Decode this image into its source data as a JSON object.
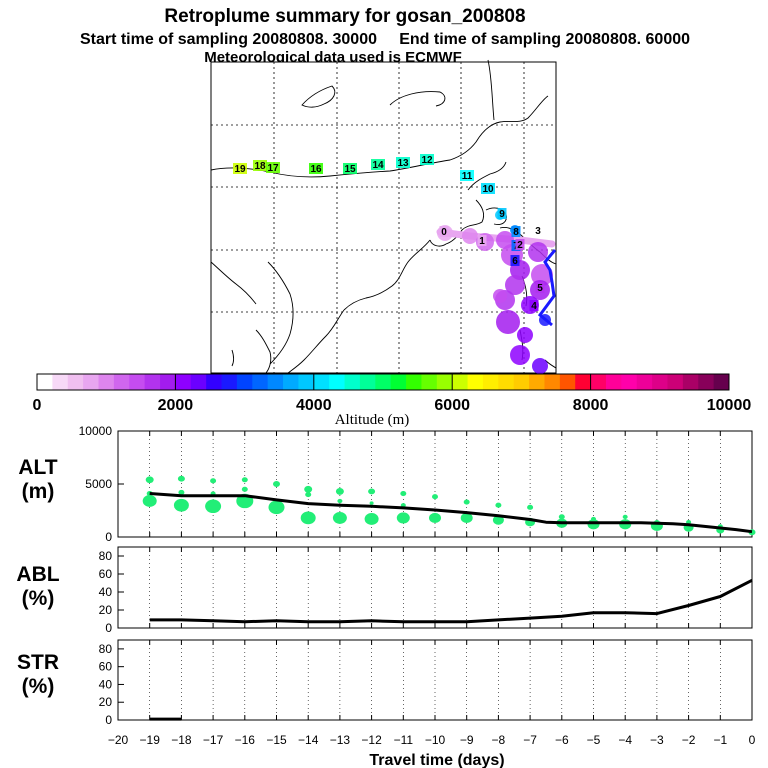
{
  "header": {
    "title": "Retroplume summary for gosan_200808",
    "sampling": "Start time of sampling 20080808. 30000     End time of sampling 20080808. 60000",
    "met": "Meteorological data used is ECMWF"
  },
  "colorbar": {
    "ticks": [
      "0",
      "2000",
      "4000",
      "6000",
      "8000",
      "10000"
    ],
    "label": "Altitude (m)",
    "colors": [
      "#ffffff",
      "#f7d9f7",
      "#f0bff0",
      "#e8a6f0",
      "#de85ee",
      "#d066ee",
      "#c54cf0",
      "#b233ee",
      "#a31cee",
      "#8e00ff",
      "#6b00ff",
      "#3300ff",
      "#1a1aff",
      "#0044ff",
      "#0066ff",
      "#0088ff",
      "#00aaff",
      "#00c8ff",
      "#00e0ff",
      "#00ffff",
      "#00ffcc",
      "#00ff99",
      "#00ff66",
      "#00ff33",
      "#33ff00",
      "#66ff00",
      "#99ff00",
      "#ccff00",
      "#ffff00",
      "#ffee00",
      "#ffdd00",
      "#ffcc00",
      "#ffaa00",
      "#ff8800",
      "#ff5500",
      "#ff0033",
      "#ff0066",
      "#ff0099",
      "#ff00aa",
      "#ee0099",
      "#dd0088",
      "#cc0077",
      "#aa0066",
      "#88005a",
      "#66004d"
    ]
  },
  "map_labels": [
    "19",
    "18",
    "17",
    "16",
    "15",
    "14",
    "13",
    "12",
    "11",
    "10",
    "9",
    "8",
    "7",
    "6",
    "5",
    "4",
    "3",
    "2",
    "1",
    "0"
  ],
  "chart_data": [
    {
      "type": "scatter",
      "panel": "ALT",
      "ylabel_1": "ALT",
      "ylabel_2": "(m)",
      "ylim": [
        0,
        10000
      ],
      "yticks": [
        "0",
        "5000",
        "10000"
      ],
      "median_line": {
        "x": [
          0,
          -0.5,
          -1,
          -1.5,
          -2,
          -2.5,
          -3,
          -3.5,
          -4,
          -5,
          -6,
          -6.5,
          -7,
          -8,
          -9,
          -10,
          -11,
          -12,
          -13,
          -14,
          -15,
          -16,
          -17,
          -18,
          -19
        ],
        "y": [
          500,
          700,
          850,
          1000,
          1150,
          1250,
          1300,
          1350,
          1350,
          1350,
          1350,
          1400,
          1650,
          2000,
          2300,
          2550,
          2750,
          2900,
          3000,
          3150,
          3500,
          3900,
          3900,
          3900,
          4100
        ]
      },
      "main_dots": {
        "x": [
          -19,
          -18,
          -17,
          -16,
          -15,
          -14,
          -13,
          -12,
          -11,
          -10,
          -9,
          -8,
          -7,
          -6,
          -5,
          -4,
          -3,
          -2,
          -1,
          0
        ],
        "y": [
          3400,
          3000,
          2900,
          3400,
          2800,
          1800,
          1800,
          1700,
          1800,
          1800,
          1800,
          1600,
          1400,
          1300,
          1200,
          1200,
          1050,
          900,
          650,
          450
        ],
        "size": [
          7,
          7.5,
          8,
          8.5,
          8,
          7.5,
          7,
          7,
          6.5,
          6,
          6,
          5.5,
          5,
          5.5,
          6,
          6,
          6,
          5,
          4,
          3.5
        ]
      },
      "upper_dots": {
        "x": [
          -19,
          -18,
          -17,
          -16,
          -15,
          -14,
          -13,
          -12,
          -11,
          -10,
          -9,
          -8,
          -7,
          -6,
          -5,
          -4,
          -3,
          -2,
          -1
        ],
        "y": [
          5400,
          5500,
          5300,
          5400,
          5000,
          4500,
          4300,
          4300,
          4100,
          3800,
          3300,
          3000,
          2800,
          1900,
          1700,
          1900,
          1400,
          1400,
          1000
        ],
        "size": [
          4,
          3.5,
          3,
          3,
          3.5,
          4,
          4,
          3.5,
          3,
          3,
          3,
          3,
          3,
          3,
          2.5,
          2.5,
          2.5,
          2.5,
          2.5
        ]
      },
      "mid_dots": {
        "x": [
          -19,
          -18,
          -17,
          -16,
          -15,
          -14,
          -13,
          -12,
          -11
        ],
        "y": [
          4100,
          4200,
          4100,
          4500,
          3400,
          4000,
          3400,
          3200,
          3000
        ],
        "size": [
          3,
          3,
          2.5,
          3,
          2.5,
          3,
          2.5,
          2,
          2.5
        ]
      }
    },
    {
      "type": "line",
      "panel": "ABL",
      "ylabel_1": "ABL",
      "ylabel_2": "(%)",
      "ylim": [
        0,
        90
      ],
      "yticks": [
        "0",
        "20",
        "40",
        "60",
        "80"
      ],
      "x": [
        -19,
        -18,
        -17,
        -16,
        -15,
        -14,
        -13,
        -12,
        -11,
        -10,
        -9,
        -8,
        -7,
        -6,
        -5,
        -4,
        -3,
        -2,
        -1,
        0
      ],
      "y": [
        9,
        9,
        8,
        7,
        8,
        7,
        7,
        8,
        7,
        7,
        7,
        9,
        11,
        13,
        17,
        17,
        16,
        25,
        35,
        53
      ]
    },
    {
      "type": "line",
      "panel": "STR",
      "ylabel_1": "STR",
      "ylabel_2": "(%)",
      "ylim": [
        0,
        90
      ],
      "yticks": [
        "0",
        "20",
        "40",
        "60",
        "80"
      ],
      "x": [
        -19,
        -18
      ],
      "y": [
        1,
        1
      ]
    }
  ],
  "xaxis": {
    "label": "Travel time (days)",
    "ticks": [
      "−20",
      "−19",
      "−18",
      "−17",
      "−16",
      "−15",
      "−14",
      "−13",
      "−12",
      "−11",
      "−10",
      "−9",
      "−8",
      "−7",
      "−6",
      "−5",
      "−4",
      "−3",
      "−2",
      "−1",
      "0"
    ],
    "range": [
      -20,
      0
    ]
  }
}
